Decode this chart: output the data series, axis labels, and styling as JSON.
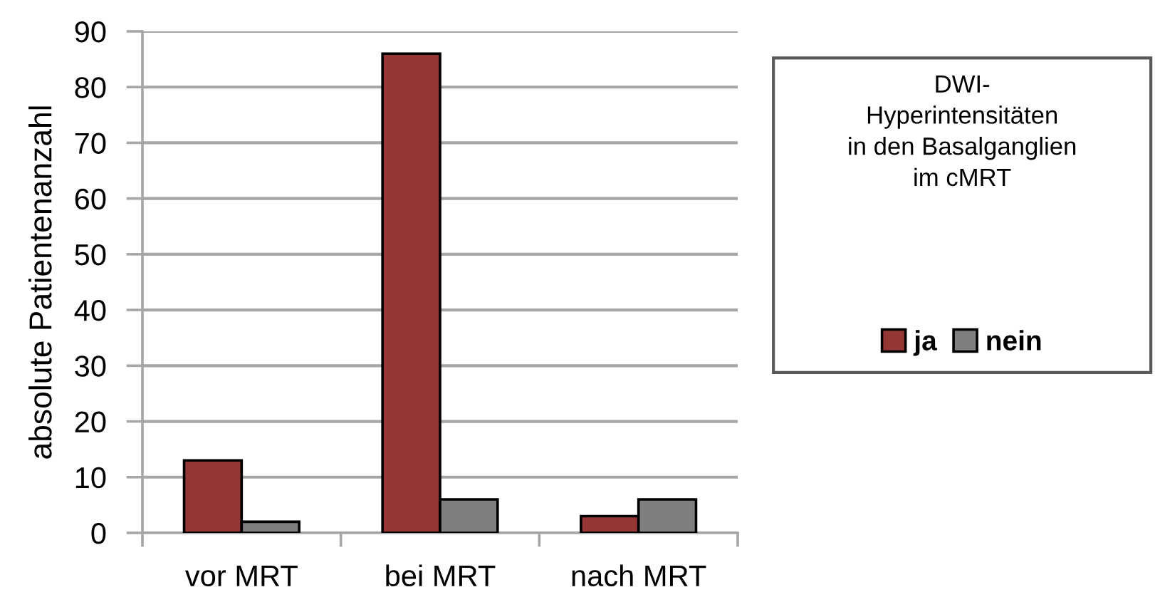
{
  "chart_data": {
    "type": "bar",
    "ylabel": "absolute Patientenanzahl",
    "legend_title": "DWI-\nHyperintensitäten\nin den Basalganglien\nim cMRT",
    "categories": [
      "vor MRT",
      "bei MRT",
      "nach MRT"
    ],
    "series": [
      {
        "name": "ja",
        "color": "#953735",
        "values": [
          13,
          86,
          3
        ]
      },
      {
        "name": "nein",
        "color": "#7f7f7f",
        "values": [
          2,
          6,
          6
        ]
      }
    ],
    "ylim": [
      0,
      90
    ],
    "yticks": [
      0,
      10,
      20,
      30,
      40,
      50,
      60,
      70,
      80,
      90
    ],
    "grid": "y",
    "legend": "right"
  }
}
